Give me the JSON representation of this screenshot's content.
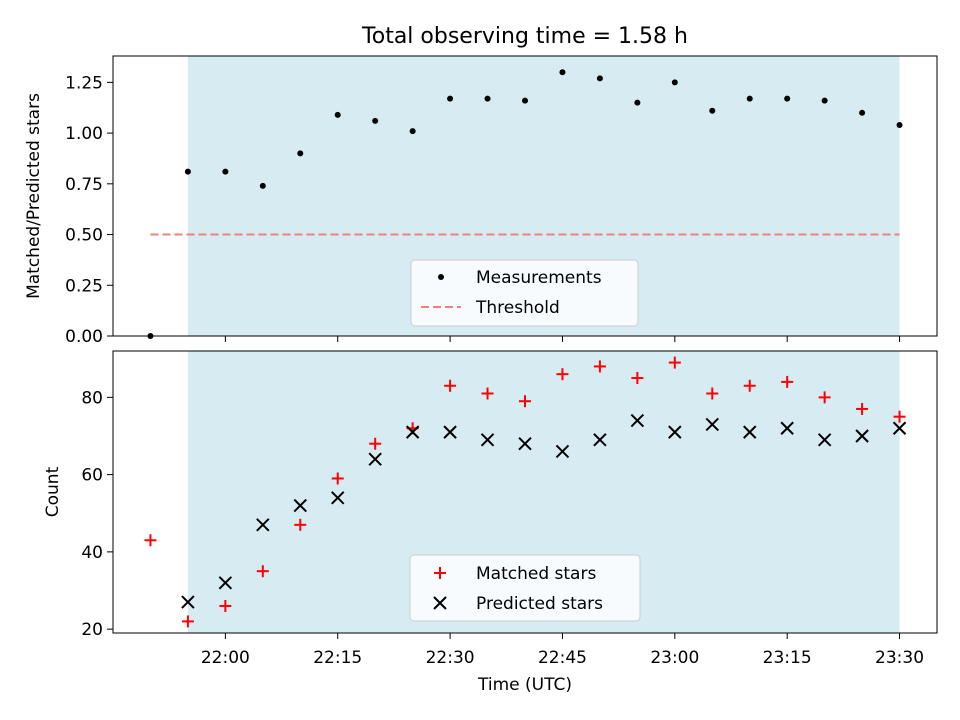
{
  "chart_data": [
    {
      "type": "scatter",
      "title": "Total observing time = 1.58 h",
      "xlabel": "",
      "ylabel": "Matched/Predicted stars",
      "xlim": [
        "21:45",
        "23:35"
      ],
      "ylim": [
        0,
        1.38
      ],
      "yticks": [
        "0.00",
        "0.25",
        "0.50",
        "0.75",
        "1.00",
        "1.25"
      ],
      "ytick_values": [
        0,
        0.25,
        0.5,
        0.75,
        1.0,
        1.25
      ],
      "shaded_span": [
        "21:55",
        "23:30"
      ],
      "shaded_color": "#add8e6",
      "series": [
        {
          "name": "Measurements",
          "marker": "dot",
          "color": "#000000",
          "x": [
            "21:50",
            "21:55",
            "22:00",
            "22:05",
            "22:10",
            "22:15",
            "22:20",
            "22:25",
            "22:30",
            "22:35",
            "22:40",
            "22:45",
            "22:50",
            "22:55",
            "23:00",
            "23:05",
            "23:10",
            "23:15",
            "23:20",
            "23:25",
            "23:30"
          ],
          "y": [
            0.0,
            0.81,
            0.81,
            0.74,
            0.9,
            1.09,
            1.06,
            1.01,
            1.17,
            1.17,
            1.16,
            1.3,
            1.27,
            1.15,
            1.25,
            1.11,
            1.17,
            1.17,
            1.16,
            1.1,
            1.04
          ]
        },
        {
          "name": "Threshold",
          "marker": "dashed-line",
          "color": "#f08080",
          "x": [
            "21:50",
            "23:30"
          ],
          "y": [
            0.5,
            0.5
          ]
        }
      ],
      "legend": "lower center"
    },
    {
      "type": "scatter",
      "title": "",
      "xlabel": "Time (UTC)",
      "ylabel": "Count",
      "xlim": [
        "21:45",
        "23:35"
      ],
      "ylim": [
        19,
        92
      ],
      "yticks": [
        "20",
        "40",
        "60",
        "80"
      ],
      "ytick_values": [
        20,
        40,
        60,
        80
      ],
      "xticks": [
        "22:00",
        "22:15",
        "22:30",
        "22:45",
        "23:00",
        "23:15",
        "23:30"
      ],
      "shaded_span": [
        "21:55",
        "23:30"
      ],
      "shaded_color": "#add8e6",
      "series": [
        {
          "name": "Matched stars",
          "marker": "plus",
          "color": "#ff0000",
          "x": [
            "21:50",
            "21:55",
            "22:00",
            "22:05",
            "22:10",
            "22:15",
            "22:20",
            "22:25",
            "22:30",
            "22:35",
            "22:40",
            "22:45",
            "22:50",
            "22:55",
            "23:00",
            "23:05",
            "23:10",
            "23:15",
            "23:20",
            "23:25",
            "23:30"
          ],
          "y": [
            43,
            22,
            26,
            35,
            47,
            59,
            68,
            72,
            83,
            81,
            79,
            86,
            88,
            85,
            89,
            81,
            83,
            84,
            80,
            77,
            75
          ]
        },
        {
          "name": "Predicted stars",
          "marker": "x",
          "color": "#000000",
          "x": [
            "21:55",
            "22:00",
            "22:05",
            "22:10",
            "22:15",
            "22:20",
            "22:25",
            "22:30",
            "22:35",
            "22:40",
            "22:45",
            "22:50",
            "22:55",
            "23:00",
            "23:05",
            "23:10",
            "23:15",
            "23:20",
            "23:25",
            "23:30"
          ],
          "y": [
            27,
            32,
            47,
            52,
            54,
            64,
            71,
            71,
            69,
            68,
            66,
            69,
            74,
            71,
            73,
            71,
            72,
            69,
            70,
            72
          ]
        }
      ],
      "legend": "lower center"
    }
  ]
}
